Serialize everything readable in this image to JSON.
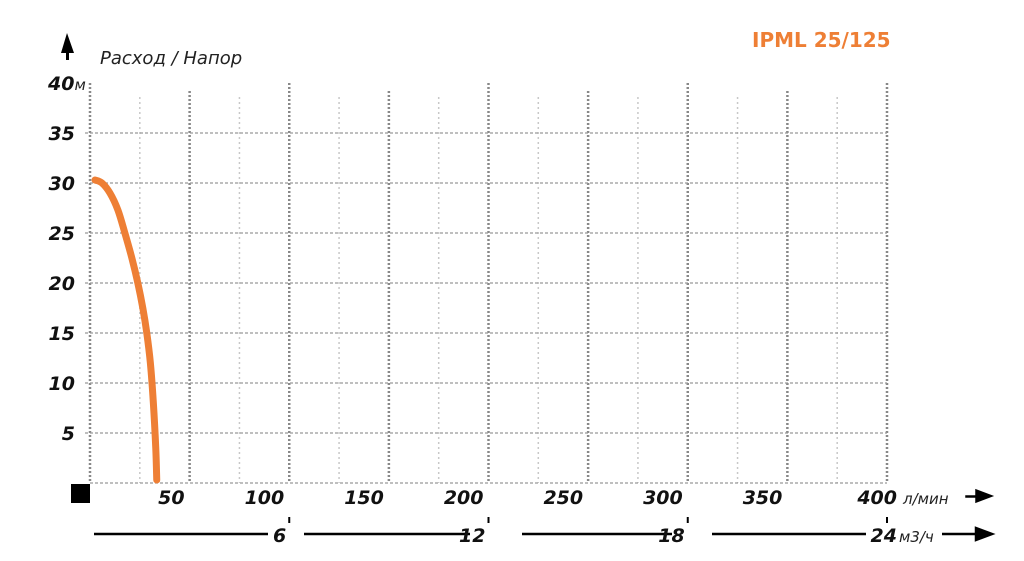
{
  "chart_data": {
    "type": "line",
    "title": "IPML 25/125",
    "ylabel": "Расход / Напор",
    "y_unit": "м",
    "x_unit": "л/мин",
    "x2_unit": "м3/ч",
    "xlim": [
      0,
      400
    ],
    "ylim": [
      0,
      40
    ],
    "x_ticks": [
      "50",
      "100",
      "150",
      "200",
      "250",
      "300",
      "350",
      "400"
    ],
    "x_tick_values": [
      50,
      100,
      150,
      200,
      250,
      300,
      350,
      400
    ],
    "y_ticks": [
      "5",
      "10",
      "15",
      "20",
      "25",
      "30",
      "35",
      "40"
    ],
    "y_tick_values": [
      5,
      10,
      15,
      20,
      25,
      30,
      35,
      40
    ],
    "x2_ticks": [
      "6",
      "12",
      "18",
      "24"
    ],
    "x2_tick_values_lpm": [
      100,
      200,
      300,
      400
    ],
    "grid": true,
    "colors": {
      "curve": "#ee7f35",
      "title": "#ee7f35",
      "grid": "#999999"
    },
    "series": [
      {
        "x": [
          2.5,
          6,
          10,
          14,
          17.5,
          21,
          24,
          26.5,
          28.5,
          30.3,
          31.8,
          33,
          33.5
        ],
        "y": [
          30.3,
          30,
          29,
          27.3,
          25,
          22.5,
          20,
          17.5,
          15,
          12,
          8,
          3.5,
          0.3
        ]
      }
    ]
  }
}
